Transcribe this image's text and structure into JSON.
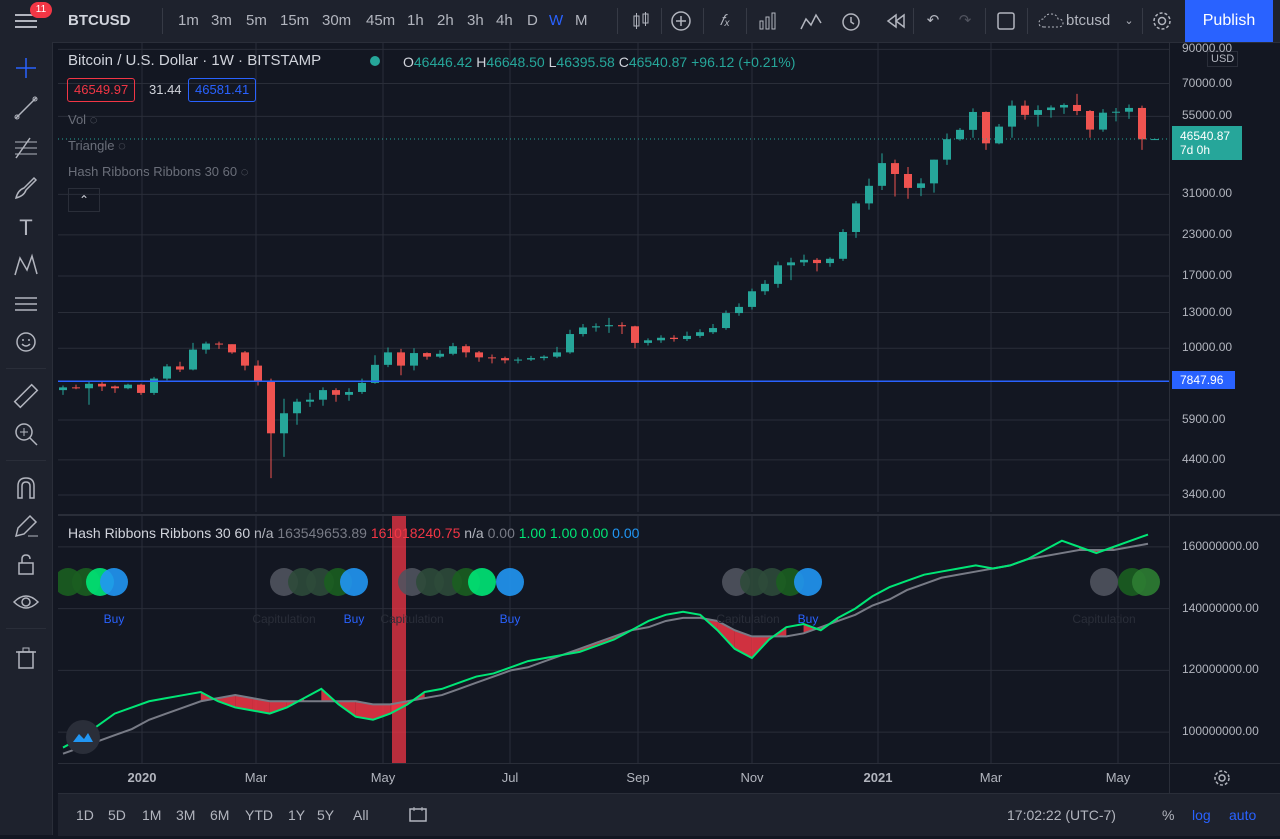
{
  "toolbar": {
    "notifications": "11",
    "symbol": "BTCUSD",
    "intervals": [
      "1m",
      "3m",
      "5m",
      "15m",
      "30m",
      "45m",
      "1h",
      "2h",
      "3h",
      "4h",
      "D",
      "W",
      "M"
    ],
    "active_interval": "W",
    "layout_name": "btcusd",
    "publish_label": "Publish"
  },
  "legend": {
    "title": "Bitcoin / U.S. Dollar · 1W · BITSTAMP",
    "o_label": "O",
    "o": "46446.42",
    "h_label": "H",
    "h": "46648.50",
    "l_label": "L",
    "l": "46395.58",
    "c_label": "C",
    "c": "46540.87",
    "change": "+96.12 (+0.21%)",
    "bid": "46549.97",
    "spread": "31.44",
    "ask": "46581.41",
    "indicators": [
      "Vol",
      "Triangle",
      "Hash Ribbons Ribbons 30 60"
    ]
  },
  "price_axis": {
    "currency": "USD",
    "labels": [
      "90000.00",
      "70000.00",
      "55000.00",
      "31000.00",
      "23000.00",
      "17000.00",
      "13000.00",
      "10000.00",
      "5900.00",
      "4400.00",
      "3400.00"
    ],
    "last_price": "46540.87",
    "countdown": "7d 0h",
    "hline_price": "7847.96"
  },
  "pane2": {
    "legend_name": "Hash Ribbons Ribbons 30 60",
    "v1": "n/a",
    "v2": "163549653.89",
    "v3": "161018240.75",
    "v4": "n/a",
    "v5": "0.00",
    "v6": "1.00",
    "v7": "1.00",
    "v8": "0.00",
    "v9": "0.00",
    "axis_labels": [
      "160000000.00",
      "140000000.00",
      "120000000.00",
      "100000000.00"
    ],
    "signals": [
      {
        "text": "Buy",
        "color": "#2962ff"
      },
      {
        "text": "Capitulation",
        "color": "#2a2e39"
      },
      {
        "text": "Buy",
        "color": "#2962ff"
      },
      {
        "text": "Capitulation",
        "color": "#2a2e39"
      },
      {
        "text": "Buy",
        "color": "#2962ff"
      },
      {
        "text": "Capitulation",
        "color": "#2a2e39"
      },
      {
        "text": "Buy",
        "color": "#2962ff"
      },
      {
        "text": "Capitulation",
        "color": "#2a2e39"
      }
    ]
  },
  "time_axis": [
    "2020",
    "Mar",
    "May",
    "Jul",
    "Sep",
    "Nov",
    "2021",
    "Mar",
    "May"
  ],
  "bottom": {
    "ranges": [
      "1D",
      "5D",
      "1M",
      "3M",
      "6M",
      "YTD",
      "1Y",
      "5Y",
      "All"
    ],
    "clock": "17:02:22 (UTC-7)",
    "percent": "%",
    "log": "log",
    "auto": "auto"
  },
  "chart_data": {
    "type": "candlestick",
    "title": "Bitcoin / U.S. Dollar 1W BITSTAMP",
    "scale": "log",
    "ylim": [
      3000,
      95000
    ],
    "candles": [
      [
        7350,
        7600,
        7100,
        7500
      ],
      [
        7500,
        7650,
        7400,
        7450
      ],
      [
        7450,
        7850,
        6600,
        7700
      ],
      [
        7700,
        7800,
        7300,
        7550
      ],
      [
        7550,
        7600,
        7200,
        7450
      ],
      [
        7450,
        7700,
        7400,
        7650
      ],
      [
        7650,
        7700,
        7100,
        7200
      ],
      [
        7200,
        8100,
        7100,
        8000
      ],
      [
        8000,
        8900,
        7900,
        8750
      ],
      [
        8750,
        9050,
        8400,
        8550
      ],
      [
        8550,
        10400,
        8500,
        9900
      ],
      [
        9900,
        10500,
        9600,
        10350
      ],
      [
        10350,
        10500,
        9950,
        10300
      ],
      [
        10300,
        10300,
        9600,
        9700
      ],
      [
        9700,
        9800,
        8500,
        8800
      ],
      [
        8800,
        9150,
        7600,
        7850
      ],
      [
        7850,
        8000,
        3850,
        5350
      ],
      [
        5350,
        6900,
        4500,
        6200
      ],
      [
        6200,
        6900,
        5700,
        6750
      ],
      [
        6750,
        7200,
        6500,
        6850
      ],
      [
        6850,
        7500,
        6550,
        7350
      ],
      [
        7350,
        7450,
        6750,
        7100
      ],
      [
        7100,
        7450,
        6800,
        7250
      ],
      [
        7250,
        8000,
        7150,
        7750
      ],
      [
        7750,
        9500,
        7700,
        8850
      ],
      [
        8850,
        10050,
        8700,
        9700
      ],
      [
        9700,
        9950,
        8200,
        8800
      ],
      [
        8800,
        10000,
        8500,
        9650
      ],
      [
        9650,
        9700,
        9200,
        9400
      ],
      [
        9400,
        9850,
        9300,
        9600
      ],
      [
        9600,
        10400,
        9500,
        10150
      ],
      [
        10150,
        10300,
        9350,
        9700
      ],
      [
        9700,
        9800,
        9050,
        9350
      ],
      [
        9350,
        9550,
        8950,
        9300
      ],
      [
        9300,
        9400,
        8950,
        9150
      ],
      [
        9150,
        9350,
        8950,
        9200
      ],
      [
        9200,
        9450,
        9100,
        9300
      ],
      [
        9300,
        9500,
        9150,
        9400
      ],
      [
        9400,
        10100,
        9300,
        9700
      ],
      [
        9700,
        11450,
        9600,
        11100
      ],
      [
        11100,
        11950,
        10900,
        11650
      ],
      [
        11650,
        12000,
        11300,
        11750
      ],
      [
        11750,
        12500,
        11200,
        11850
      ],
      [
        11850,
        12100,
        11100,
        11750
      ],
      [
        11750,
        11800,
        10000,
        10400
      ],
      [
        10400,
        10750,
        10200,
        10600
      ],
      [
        10600,
        11000,
        10400,
        10800
      ],
      [
        10800,
        11000,
        10500,
        10700
      ],
      [
        10700,
        11300,
        10550,
        10950
      ],
      [
        10950,
        11500,
        10800,
        11250
      ],
      [
        11250,
        11950,
        11100,
        11600
      ],
      [
        11600,
        13200,
        11450,
        12950
      ],
      [
        12950,
        13900,
        12700,
        13550
      ],
      [
        13550,
        15500,
        13300,
        15200
      ],
      [
        15200,
        16500,
        14800,
        16050
      ],
      [
        16050,
        18900,
        15600,
        18400
      ],
      [
        18400,
        19450,
        16500,
        18800
      ],
      [
        18800,
        19900,
        18300,
        19150
      ],
      [
        19150,
        19400,
        17600,
        18700
      ],
      [
        18700,
        19500,
        18200,
        19300
      ],
      [
        19300,
        24000,
        19000,
        23500
      ],
      [
        23500,
        29500,
        22500,
        29000
      ],
      [
        29000,
        34800,
        27700,
        33000
      ],
      [
        33000,
        41900,
        32000,
        39000
      ],
      [
        39000,
        40000,
        30500,
        36000
      ],
      [
        36000,
        37900,
        30000,
        32500
      ],
      [
        32500,
        34900,
        30600,
        33600
      ],
      [
        33600,
        40000,
        31400,
        40000
      ],
      [
        40000,
        48500,
        38500,
        46500
      ],
      [
        46500,
        50500,
        46000,
        49800
      ],
      [
        49800,
        58300,
        47000,
        56800
      ],
      [
        56800,
        57000,
        43000,
        45100
      ],
      [
        45100,
        52000,
        44800,
        51000
      ],
      [
        51000,
        61800,
        47000,
        59500
      ],
      [
        59500,
        61800,
        53700,
        55600
      ],
      [
        55600,
        59600,
        51000,
        57600
      ],
      [
        57600,
        59600,
        54500,
        58700
      ],
      [
        58700,
        60500,
        56000,
        59800
      ],
      [
        59800,
        64900,
        55500,
        57200
      ],
      [
        57200,
        57600,
        47000,
        49900
      ],
      [
        49900,
        58000,
        49100,
        56500
      ],
      [
        56500,
        58500,
        53000,
        56900
      ],
      [
        56900,
        60000,
        54000,
        58500
      ],
      [
        58500,
        59500,
        43000,
        46450
      ],
      [
        46446.42,
        46648.5,
        46395.58,
        46540.87
      ]
    ],
    "hash_ribbon": {
      "series": [
        {
          "name": "MA30",
          "color": "#00e676",
          "values": [
            95,
            98,
            102,
            106,
            108,
            110,
            111,
            112,
            113,
            110,
            108,
            107,
            106,
            108,
            111,
            114,
            109,
            105,
            104,
            106,
            109,
            113,
            114,
            116,
            118,
            119,
            121,
            123,
            124,
            125,
            126,
            128,
            130,
            133,
            136,
            138,
            139,
            138,
            133,
            127,
            124,
            130,
            134,
            135,
            133,
            137,
            140,
            144,
            147,
            149,
            151,
            152,
            153,
            154,
            153,
            154,
            156,
            159,
            162,
            160,
            158,
            160,
            162,
            164
          ]
        },
        {
          "name": "MA60",
          "color": "#787b86",
          "values": [
            93,
            95,
            97,
            99,
            101,
            104,
            106,
            108,
            110,
            111,
            112,
            111,
            110,
            110,
            110,
            110,
            110,
            110,
            109,
            109,
            110,
            111,
            112,
            114,
            116,
            118,
            120,
            121,
            123,
            125,
            127,
            129,
            131,
            133,
            134,
            136,
            137,
            137,
            136,
            133,
            131,
            131,
            131,
            132,
            134,
            136,
            138,
            141,
            143,
            146,
            148,
            150,
            151,
            152,
            153,
            154,
            156,
            157,
            158,
            159,
            159,
            159,
            160,
            161
          ]
        }
      ],
      "unit": "million",
      "ylim": [
        90,
        170
      ]
    }
  }
}
